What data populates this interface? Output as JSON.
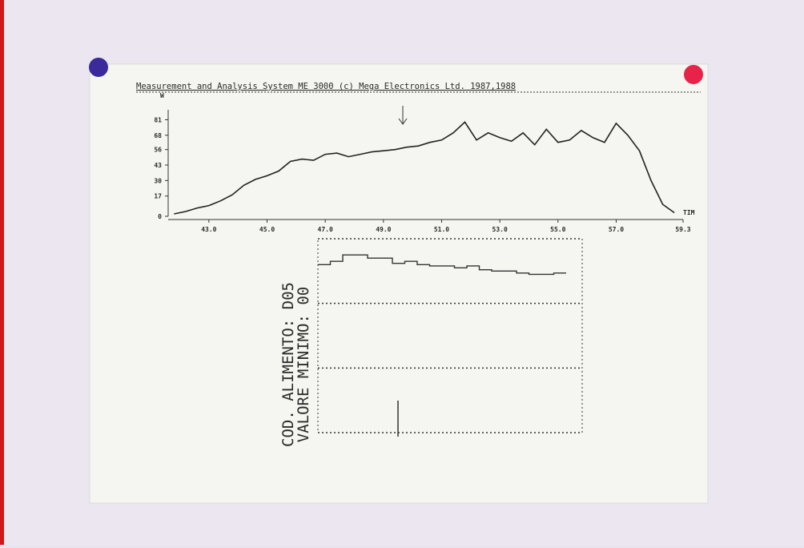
{
  "chart_data": [
    {
      "type": "line",
      "title": "Measurement and Analysis System  ME 3000   (c) Mega Electronics Ltd. 1987,1988",
      "y_label": "W",
      "x_label": "TIM",
      "x": [
        41.8,
        42.2,
        42.6,
        43.0,
        43.4,
        43.8,
        44.2,
        44.6,
        45.0,
        45.4,
        45.8,
        46.2,
        46.6,
        47.0,
        47.4,
        47.8,
        48.2,
        48.6,
        49.0,
        49.4,
        49.8,
        50.2,
        50.6,
        51.0,
        51.4,
        51.8,
        52.2,
        52.6,
        53.0,
        53.4,
        53.8,
        54.2,
        54.6,
        55.0,
        55.4,
        55.8,
        56.2,
        56.6,
        57.0,
        57.4,
        57.8,
        58.2,
        58.6,
        59.0
      ],
      "values": [
        2,
        4,
        7,
        9,
        13,
        18,
        26,
        31,
        34,
        38,
        46,
        48,
        47,
        52,
        53,
        50,
        52,
        54,
        55,
        56,
        58,
        59,
        62,
        64,
        70,
        79,
        64,
        70,
        66,
        63,
        70,
        60,
        73,
        62,
        64,
        72,
        66,
        62,
        78,
        68,
        55,
        30,
        10,
        3
      ],
      "color": "#222222",
      "xlim": [
        41.6,
        59.3
      ],
      "xticks": [
        {
          "value": 43,
          "label": "43.0"
        },
        {
          "value": 45,
          "label": "45.0"
        },
        {
          "value": 47,
          "label": "47.0"
        },
        {
          "value": 49,
          "label": "49.0"
        },
        {
          "value": 51,
          "label": "51.0"
        },
        {
          "value": 53,
          "label": "53.0"
        },
        {
          "value": 55,
          "label": "55.0"
        },
        {
          "value": 57,
          "label": "57.0"
        },
        59.3
      ],
      "ylim": [
        0,
        84
      ],
      "yticks": [
        0,
        17,
        30,
        43,
        56,
        68,
        81
      ]
    },
    {
      "type": "step",
      "annotations": [
        "COD. ALIMENTO: D05",
        "VALORE MINIMO: 00"
      ],
      "values": [
        2.6,
        2.65,
        2.75,
        2.75,
        2.7,
        2.7,
        2.62,
        2.65,
        2.6,
        2.58,
        2.58,
        2.55,
        2.58,
        2.52,
        2.5,
        2.5,
        2.47,
        2.45,
        2.45,
        2.47
      ],
      "color": "#333333",
      "ylim": [
        0,
        3
      ],
      "yticks": [
        0,
        1,
        2,
        3
      ],
      "grid": true
    }
  ]
}
